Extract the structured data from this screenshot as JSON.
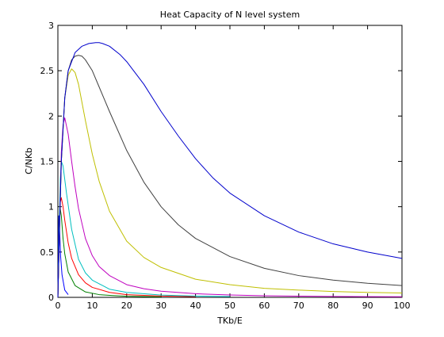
{
  "chart_data": {
    "type": "line",
    "title": "Heat Capacity of N level system",
    "xlabel": "TKb/E",
    "ylabel": "C/NKb",
    "xlim": [
      0,
      100
    ],
    "ylim": [
      0,
      3
    ],
    "grid": false,
    "x_ticks": [
      "0",
      "10",
      "20",
      "30",
      "40",
      "50",
      "60",
      "70",
      "80",
      "90",
      "100"
    ],
    "y_ticks": [
      "0",
      "0.5",
      "1",
      "1.5",
      "2",
      "2.5",
      "3"
    ],
    "x_tick_values": [
      0,
      10,
      20,
      30,
      40,
      50,
      60,
      70,
      80,
      90,
      100
    ],
    "y_tick_values": [
      0,
      0.5,
      1,
      1.5,
      2,
      2.5,
      3
    ],
    "series": [
      {
        "color": "#0000ff",
        "x": [
          0,
          0.25,
          0.5,
          0.8,
          1.2,
          2,
          3
        ],
        "y": [
          0,
          0.9,
          0.75,
          0.45,
          0.25,
          0.08,
          0.03
        ]
      },
      {
        "color": "#008000",
        "x": [
          0,
          0.3,
          0.6,
          1,
          1.5,
          2,
          3,
          5,
          8,
          12,
          16,
          20,
          30
        ],
        "y": [
          0,
          0.5,
          1.0,
          0.9,
          0.65,
          0.48,
          0.28,
          0.13,
          0.06,
          0.03,
          0.02,
          0.012,
          0.005
        ]
      },
      {
        "color": "#ff0000",
        "x": [
          0,
          0.3,
          0.7,
          1,
          1.5,
          2,
          3,
          4,
          6,
          8,
          10,
          15,
          20,
          30,
          40
        ],
        "y": [
          0,
          0.5,
          1.05,
          1.1,
          1.0,
          0.85,
          0.6,
          0.43,
          0.25,
          0.16,
          0.11,
          0.055,
          0.03,
          0.014,
          0.008
        ]
      },
      {
        "color": "#00bfbf",
        "x": [
          0,
          0.3,
          0.7,
          1,
          1.5,
          2.5,
          4,
          6,
          8,
          10,
          15,
          20,
          30,
          40,
          50
        ],
        "y": [
          0,
          0.6,
          1.3,
          1.5,
          1.45,
          1.15,
          0.75,
          0.42,
          0.27,
          0.19,
          0.09,
          0.055,
          0.025,
          0.014,
          0.009
        ]
      },
      {
        "color": "#bf00bf",
        "x": [
          0,
          0.5,
          1,
          1.5,
          2,
          3,
          4,
          5,
          6,
          8,
          10,
          12,
          15,
          20,
          25,
          30,
          40,
          50,
          60,
          70,
          80,
          90,
          100
        ],
        "y": [
          0,
          0.8,
          1.6,
          1.9,
          1.98,
          1.8,
          1.5,
          1.22,
          0.98,
          0.65,
          0.46,
          0.34,
          0.24,
          0.14,
          0.095,
          0.068,
          0.04,
          0.026,
          0.018,
          0.013,
          0.01,
          0.008,
          0.007
        ]
      },
      {
        "color": "#bfbf00",
        "x": [
          0,
          0.5,
          1,
          2,
          3,
          4,
          5,
          6,
          8,
          10,
          12,
          15,
          20,
          25,
          30,
          40,
          50,
          60,
          70,
          80,
          90,
          100
        ],
        "y": [
          0,
          0.8,
          1.5,
          2.2,
          2.45,
          2.52,
          2.48,
          2.35,
          1.95,
          1.58,
          1.28,
          0.95,
          0.62,
          0.44,
          0.33,
          0.2,
          0.14,
          0.1,
          0.08,
          0.065,
          0.055,
          0.048
        ]
      },
      {
        "color": "#404040",
        "x": [
          0,
          0.5,
          1,
          2,
          3,
          4,
          5,
          6,
          7,
          8,
          10,
          12,
          15,
          20,
          25,
          30,
          35,
          40,
          50,
          60,
          70,
          80,
          90,
          100
        ],
        "y": [
          0,
          0.8,
          1.5,
          2.2,
          2.5,
          2.62,
          2.66,
          2.67,
          2.66,
          2.62,
          2.5,
          2.32,
          2.05,
          1.62,
          1.27,
          1.0,
          0.8,
          0.65,
          0.45,
          0.32,
          0.24,
          0.19,
          0.155,
          0.13
        ]
      },
      {
        "color": "#0000cc",
        "x": [
          0,
          0.5,
          1,
          2,
          3,
          5,
          7,
          9,
          11,
          12,
          13,
          15,
          18,
          20,
          25,
          30,
          35,
          40,
          45,
          50,
          60,
          70,
          80,
          90,
          100
        ],
        "y": [
          0,
          0.8,
          1.5,
          2.2,
          2.5,
          2.7,
          2.77,
          2.8,
          2.81,
          2.81,
          2.8,
          2.77,
          2.68,
          2.6,
          2.35,
          2.05,
          1.78,
          1.53,
          1.32,
          1.15,
          0.9,
          0.72,
          0.59,
          0.5,
          0.43
        ]
      }
    ]
  }
}
